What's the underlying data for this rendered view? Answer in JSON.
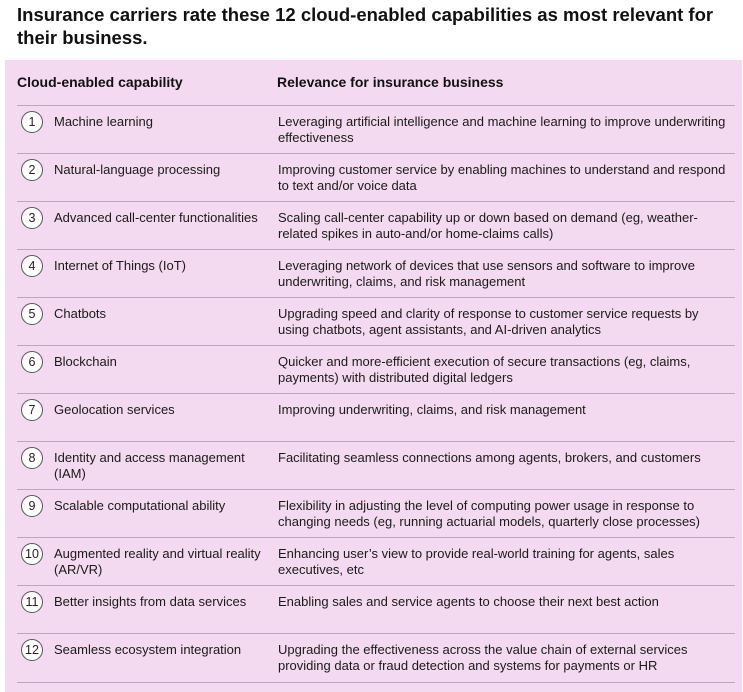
{
  "title": "Insurance carriers rate these 12 cloud-enabled capabilities as most relevant for their business.",
  "table": {
    "headers": {
      "capability": "Cloud-enabled capability",
      "relevance": "Relevance for insurance business"
    },
    "rows": [
      {
        "num": "1",
        "capability": "Machine learning",
        "relevance": "Leveraging artificial intelligence and machine learning to improve underwriting effectiveness"
      },
      {
        "num": "2",
        "capability": "Natural-language processing",
        "relevance": "Improving customer service by enabling machines to understand and respond to text and/or voice data"
      },
      {
        "num": "3",
        "capability": "Advanced call-center functionalities",
        "relevance": "Scaling call-center capability up or down based on demand (eg, weather-related spikes in auto-and/or home-claims calls)"
      },
      {
        "num": "4",
        "capability": "Internet of Things (IoT)",
        "relevance": "Leveraging network of devices that use sensors and software to improve underwriting, claims, and risk management"
      },
      {
        "num": "5",
        "capability": "Chatbots",
        "relevance": "Upgrading speed and clarity of response to customer service requests by using chatbots, agent assistants, and AI-driven analytics"
      },
      {
        "num": "6",
        "capability": "Blockchain",
        "relevance": "Quicker and more-efficient execution of secure transactions (eg, claims, payments) with distributed digital ledgers"
      },
      {
        "num": "7",
        "capability": "Geolocation services",
        "relevance": "Improving underwriting, claims, and risk management"
      },
      {
        "num": "8",
        "capability": "Identity and access management (IAM)",
        "relevance": "Facilitating seamless connections among agents, brokers, and customers"
      },
      {
        "num": "9",
        "capability": "Scalable computational ability",
        "relevance": "Flexibility in adjusting the level of computing power usage in response to changing needs (eg, running actuarial models, quarterly close processes)"
      },
      {
        "num": "10",
        "capability": "Augmented reality and virtual reality (AR/VR)",
        "relevance": "Enhancing user’s view to provide real-world training for agents, sales executives, etc"
      },
      {
        "num": "11",
        "capability": "Better insights from data services",
        "relevance": "Enabling sales and service agents to choose their next best action"
      },
      {
        "num": "12",
        "capability": "Seamless ecosystem integration",
        "relevance": "Upgrading the effectiveness across the value chain of external services providing data or fraud detection and systems for payments or HR"
      }
    ]
  },
  "colors": {
    "panel_background": "#f4daf0",
    "row_divider": "#c9a0c4"
  }
}
